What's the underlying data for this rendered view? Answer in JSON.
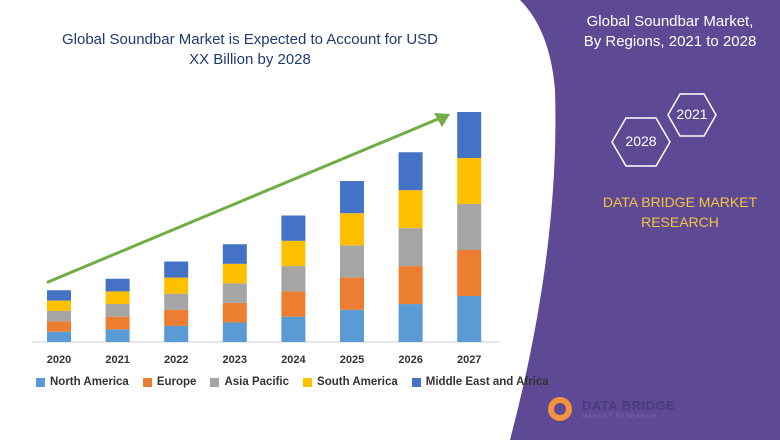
{
  "chart_data": {
    "type": "bar",
    "stacked": true,
    "title": "Global Soundbar Market is Expected to Account for USD XX Billion by 2028",
    "categories": [
      "2020",
      "2021",
      "2022",
      "2023",
      "2024",
      "2025",
      "2026",
      "2027"
    ],
    "series": [
      {
        "name": "North America",
        "color": "#5b9bd5",
        "values": [
          9,
          11,
          14,
          17,
          22,
          28,
          33,
          40
        ]
      },
      {
        "name": "Europe",
        "color": "#ed7d31",
        "values": [
          9,
          11,
          14,
          17,
          22,
          28,
          33,
          40
        ]
      },
      {
        "name": "Asia Pacific",
        "color": "#a5a5a5",
        "values": [
          9,
          11,
          14,
          17,
          22,
          28,
          33,
          40
        ]
      },
      {
        "name": "South America",
        "color": "#ffc000",
        "values": [
          9,
          11,
          14,
          17,
          22,
          28,
          33,
          40
        ]
      },
      {
        "name": "Middle East and Africa",
        "color": "#4472c4",
        "values": [
          9,
          11,
          14,
          17,
          22,
          28,
          33,
          40
        ]
      }
    ],
    "xlabel": "",
    "ylabel": "",
    "ylim": [
      0,
      200
    ],
    "legend": "bottom",
    "grid": false,
    "trend_arrow_color": "#70ad47"
  },
  "side_panel": {
    "title_line1": "Global Soundbar Market,",
    "title_line2": "By Regions, 2021 to 2028",
    "year_a": "2021",
    "year_b": "2028",
    "brand_line1": "DATA BRIDGE MARKET",
    "brand_line2": "RESEARCH",
    "panel_color": "#5e4a94",
    "accent_color": "#f5c242"
  },
  "logo": {
    "name": "DATA BRIDGE",
    "tagline": "MARKET RESEARCH"
  }
}
